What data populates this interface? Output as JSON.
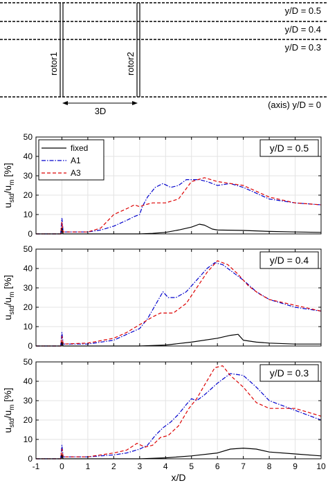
{
  "schematic": {
    "line_labels": [
      "y/D = 0.5",
      "y/D = 0.4",
      "y/D = 0.3",
      "(axis) y/D = 0"
    ],
    "rotor1_label": "rotor1",
    "rotor2_label": "rotor2",
    "spacing_label": "3D"
  },
  "colors": {
    "fixed": "#000000",
    "A1": "#0000cc",
    "A3": "#dd0000",
    "grid": "#e3e3e3"
  },
  "chart_data": [
    {
      "type": "line",
      "panel_label": "y/D = 0.5",
      "xlabel": "",
      "ylabel": "u_std/u_m [%]",
      "xlim": [
        -1,
        10
      ],
      "ylim": [
        0,
        50
      ],
      "xticks": [
        "-1",
        "0",
        "1",
        "2",
        "3",
        "4",
        "5",
        "6",
        "7",
        "8",
        "9",
        "10"
      ],
      "yticks": [
        "0",
        "10",
        "20",
        "30",
        "40",
        "50"
      ],
      "grid": true,
      "legend": {
        "position": "top-left",
        "entries": [
          "fixed",
          "A1",
          "A3"
        ]
      },
      "series": [
        {
          "name": "fixed",
          "style": "solid",
          "x": [
            -1,
            -0.05,
            0,
            0.05,
            1,
            2,
            3,
            3.5,
            4,
            4.5,
            5,
            5.3,
            5.5,
            5.8,
            6,
            7,
            8,
            9,
            10
          ],
          "y": [
            0,
            0,
            3,
            0,
            0,
            0,
            0,
            0.3,
            0.8,
            2,
            3.5,
            5,
            4.5,
            2.5,
            2,
            1.8,
            1.3,
            1,
            0.8
          ]
        },
        {
          "name": "A1",
          "style": "dashdot",
          "x": [
            -1,
            -0.05,
            0,
            0.05,
            1,
            1.5,
            2,
            2.5,
            2.8,
            3,
            3.1,
            3.3,
            3.6,
            3.9,
            4.2,
            4.5,
            4.8,
            5,
            5.3,
            5.6,
            6,
            6.5,
            7,
            7.5,
            8,
            9,
            10
          ],
          "y": [
            0,
            0,
            8,
            1,
            1,
            2,
            4,
            7,
            9,
            10,
            14,
            19,
            24,
            26,
            24,
            25,
            28,
            28,
            28,
            27,
            25,
            26,
            24,
            21,
            18,
            16,
            15
          ]
        },
        {
          "name": "A3",
          "style": "dashed",
          "x": [
            -1,
            -0.05,
            0,
            0.05,
            1,
            1.5,
            2,
            2.5,
            2.8,
            3,
            3.2,
            3.5,
            4,
            4.5,
            5,
            5.5,
            6,
            6.5,
            7,
            7.5,
            8,
            9,
            10
          ],
          "y": [
            0,
            0,
            6,
            1,
            1,
            3,
            10,
            13,
            15,
            14,
            15,
            16,
            16,
            18,
            27,
            29,
            27,
            26,
            25,
            22,
            19,
            16,
            15
          ]
        }
      ]
    },
    {
      "type": "line",
      "panel_label": "y/D = 0.4",
      "xlabel": "",
      "ylabel": "u_std/u_m [%]",
      "xlim": [
        -1,
        10
      ],
      "ylim": [
        0,
        50
      ],
      "xticks": [
        "-1",
        "0",
        "1",
        "2",
        "3",
        "4",
        "5",
        "6",
        "7",
        "8",
        "9",
        "10"
      ],
      "yticks": [
        "0",
        "10",
        "20",
        "30",
        "40",
        "50"
      ],
      "grid": true,
      "legend": null,
      "series": [
        {
          "name": "fixed",
          "style": "solid",
          "x": [
            -1,
            -0.05,
            0,
            0.05,
            1,
            2,
            3,
            4,
            5,
            6,
            6.5,
            6.8,
            7,
            7.5,
            8,
            9,
            10
          ],
          "y": [
            0,
            0,
            2,
            0,
            0,
            0,
            0,
            0.5,
            2,
            4,
            5.5,
            6,
            3,
            2,
            1.5,
            1,
            1
          ]
        },
        {
          "name": "A1",
          "style": "dashdot",
          "x": [
            -1,
            -0.05,
            0,
            0.05,
            1,
            2,
            2.5,
            3,
            3.3,
            3.6,
            3.9,
            4.1,
            4.4,
            4.8,
            5.2,
            5.6,
            5.9,
            6.2,
            6.6,
            7,
            7.5,
            8,
            9,
            10
          ],
          "y": [
            0,
            0,
            7,
            1,
            1,
            3,
            6,
            9,
            14,
            21,
            28,
            25,
            25,
            28,
            34,
            40,
            43,
            42,
            38,
            34,
            28,
            24,
            20,
            18
          ]
        },
        {
          "name": "A3",
          "style": "dashed",
          "x": [
            -1,
            -0.05,
            0,
            0.05,
            1,
            2,
            2.5,
            3,
            3.5,
            3.8,
            4.3,
            4.8,
            5.2,
            5.6,
            6,
            6.4,
            6.8,
            7.2,
            7.6,
            8,
            9,
            10
          ],
          "y": [
            0,
            0,
            5,
            1,
            1.5,
            4,
            7,
            11,
            15,
            17,
            17,
            22,
            30,
            38,
            44,
            42,
            37,
            31,
            27,
            24,
            21,
            18
          ]
        }
      ]
    },
    {
      "type": "line",
      "panel_label": "y/D = 0.3",
      "xlabel": "x/D",
      "ylabel": "u_std/u_m [%]",
      "xlim": [
        -1,
        10
      ],
      "ylim": [
        0,
        50
      ],
      "xticks": [
        "-1",
        "0",
        "1",
        "2",
        "3",
        "4",
        "5",
        "6",
        "7",
        "8",
        "9",
        "10"
      ],
      "yticks": [
        "0",
        "10",
        "20",
        "30",
        "40",
        "50"
      ],
      "grid": true,
      "legend": null,
      "series": [
        {
          "name": "fixed",
          "style": "solid",
          "x": [
            -1,
            -0.05,
            0,
            0.05,
            1,
            2,
            3,
            4,
            5,
            6,
            6.5,
            7,
            7.5,
            8,
            9,
            10
          ],
          "y": [
            0,
            0,
            2,
            0,
            0,
            0,
            0,
            0.5,
            1.5,
            3,
            5,
            5.5,
            5,
            3.5,
            2.5,
            1.5
          ]
        },
        {
          "name": "A1",
          "style": "dashdot",
          "x": [
            -1,
            -0.05,
            0,
            0.05,
            1,
            2,
            2.5,
            3,
            3.3,
            3.6,
            3.9,
            4.2,
            4.5,
            4.8,
            5,
            5.2,
            5.5,
            6,
            6.5,
            7,
            7.5,
            8,
            9,
            10
          ],
          "y": [
            0,
            0,
            7,
            1,
            1,
            2,
            3,
            5,
            7,
            12,
            16,
            19,
            23,
            28,
            31,
            30,
            33,
            39,
            44,
            43,
            37,
            30,
            25,
            20
          ]
        },
        {
          "name": "A3",
          "style": "dashed",
          "x": [
            -1,
            -0.05,
            0,
            0.05,
            1,
            2,
            2.5,
            2.9,
            3.2,
            3.5,
            3.8,
            4.1,
            4.5,
            4.9,
            5.2,
            5.5,
            5.9,
            6.2,
            6.5,
            7,
            7.5,
            8,
            9,
            10
          ],
          "y": [
            0,
            0,
            5,
            1,
            1,
            3,
            4.5,
            8,
            6,
            7,
            11,
            12,
            17,
            26,
            31,
            38,
            47,
            48,
            43,
            37,
            29,
            26,
            26,
            22
          ]
        }
      ]
    }
  ]
}
